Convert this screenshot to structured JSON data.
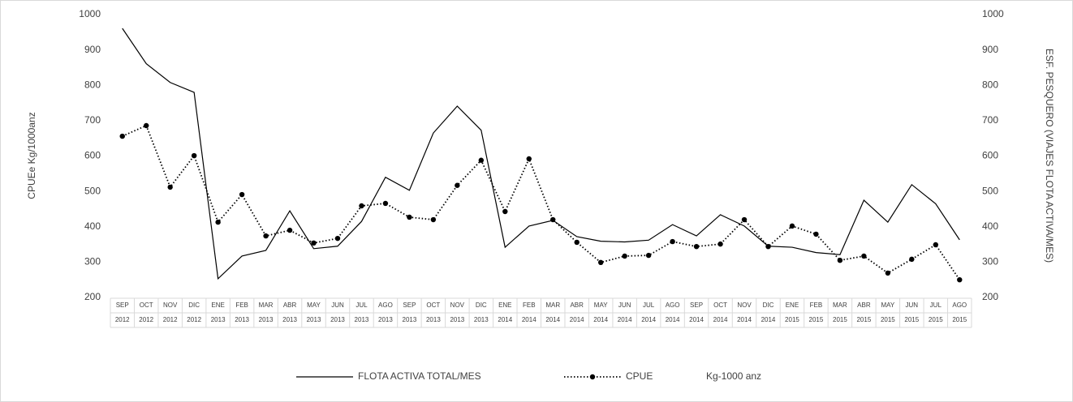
{
  "chart_data": {
    "type": "line",
    "categories": [
      [
        "SEP",
        "2012"
      ],
      [
        "OCT",
        "2012"
      ],
      [
        "NOV",
        "2012"
      ],
      [
        "DIC",
        "2012"
      ],
      [
        "ENE",
        "2013"
      ],
      [
        "FEB",
        "2013"
      ],
      [
        "MAR",
        "2013"
      ],
      [
        "ABR",
        "2013"
      ],
      [
        "MAY",
        "2013"
      ],
      [
        "JUN",
        "2013"
      ],
      [
        "JUL",
        "2013"
      ],
      [
        "AGO",
        "2013"
      ],
      [
        "SEP",
        "2013"
      ],
      [
        "OCT",
        "2013"
      ],
      [
        "NOV",
        "2013"
      ],
      [
        "DIC",
        "2013"
      ],
      [
        "ENE",
        "2014"
      ],
      [
        "FEB",
        "2014"
      ],
      [
        "MAR",
        "2014"
      ],
      [
        "ABR",
        "2014"
      ],
      [
        "MAY",
        "2014"
      ],
      [
        "JUN",
        "2014"
      ],
      [
        "JUL",
        "2014"
      ],
      [
        "AGO",
        "2014"
      ],
      [
        "SEP",
        "2014"
      ],
      [
        "OCT",
        "2014"
      ],
      [
        "NOV",
        "2014"
      ],
      [
        "DIC",
        "2014"
      ],
      [
        "ENE",
        "2015"
      ],
      [
        "FEB",
        "2015"
      ],
      [
        "MAR",
        "2015"
      ],
      [
        "ABR",
        "2015"
      ],
      [
        "MAY",
        "2015"
      ],
      [
        "JUN",
        "2015"
      ],
      [
        "JUL",
        "2015"
      ],
      [
        "AGO",
        "2015"
      ]
    ],
    "series": [
      {
        "name": "FLOTA ACTIVA TOTAL/MES",
        "color": "#000000",
        "style": "solid",
        "axis": "y2",
        "values": [
          961,
          861,
          808,
          780,
          253,
          317,
          333,
          445,
          338,
          345,
          415,
          540,
          503,
          665,
          741,
          673,
          342,
          402,
          418,
          372,
          359,
          357,
          362,
          406,
          374,
          434,
          402,
          345,
          342,
          327,
          321,
          475,
          413,
          519,
          465,
          363
        ]
      },
      {
        "name": "CPUE",
        "color": "#000000",
        "style": "dotted",
        "marker": true,
        "values": [
          656,
          686,
          512,
          601,
          413,
          491,
          374,
          390,
          354,
          367,
          459,
          466,
          427,
          420,
          517,
          588,
          443,
          592,
          420,
          356,
          299,
          317,
          319,
          358,
          344,
          351,
          420,
          344,
          402,
          379,
          305,
          317,
          269,
          308,
          349,
          250
        ]
      }
    ],
    "legend_note": "Kg-1000 anz",
    "ylabel": "CPUEe Kg/1000anz",
    "y2label": "ESF. PESQUERO (VIAJES FLOTA ACTIVA/MES)",
    "ylim": [
      200,
      1000
    ],
    "yticks": [
      200,
      300,
      400,
      500,
      600,
      700,
      800,
      900,
      1000
    ],
    "y2lim": [
      200,
      1000
    ],
    "y2ticks": [
      200,
      300,
      400,
      500,
      600,
      700,
      800,
      900,
      1000
    ],
    "grid": false,
    "legend": "bottom"
  }
}
